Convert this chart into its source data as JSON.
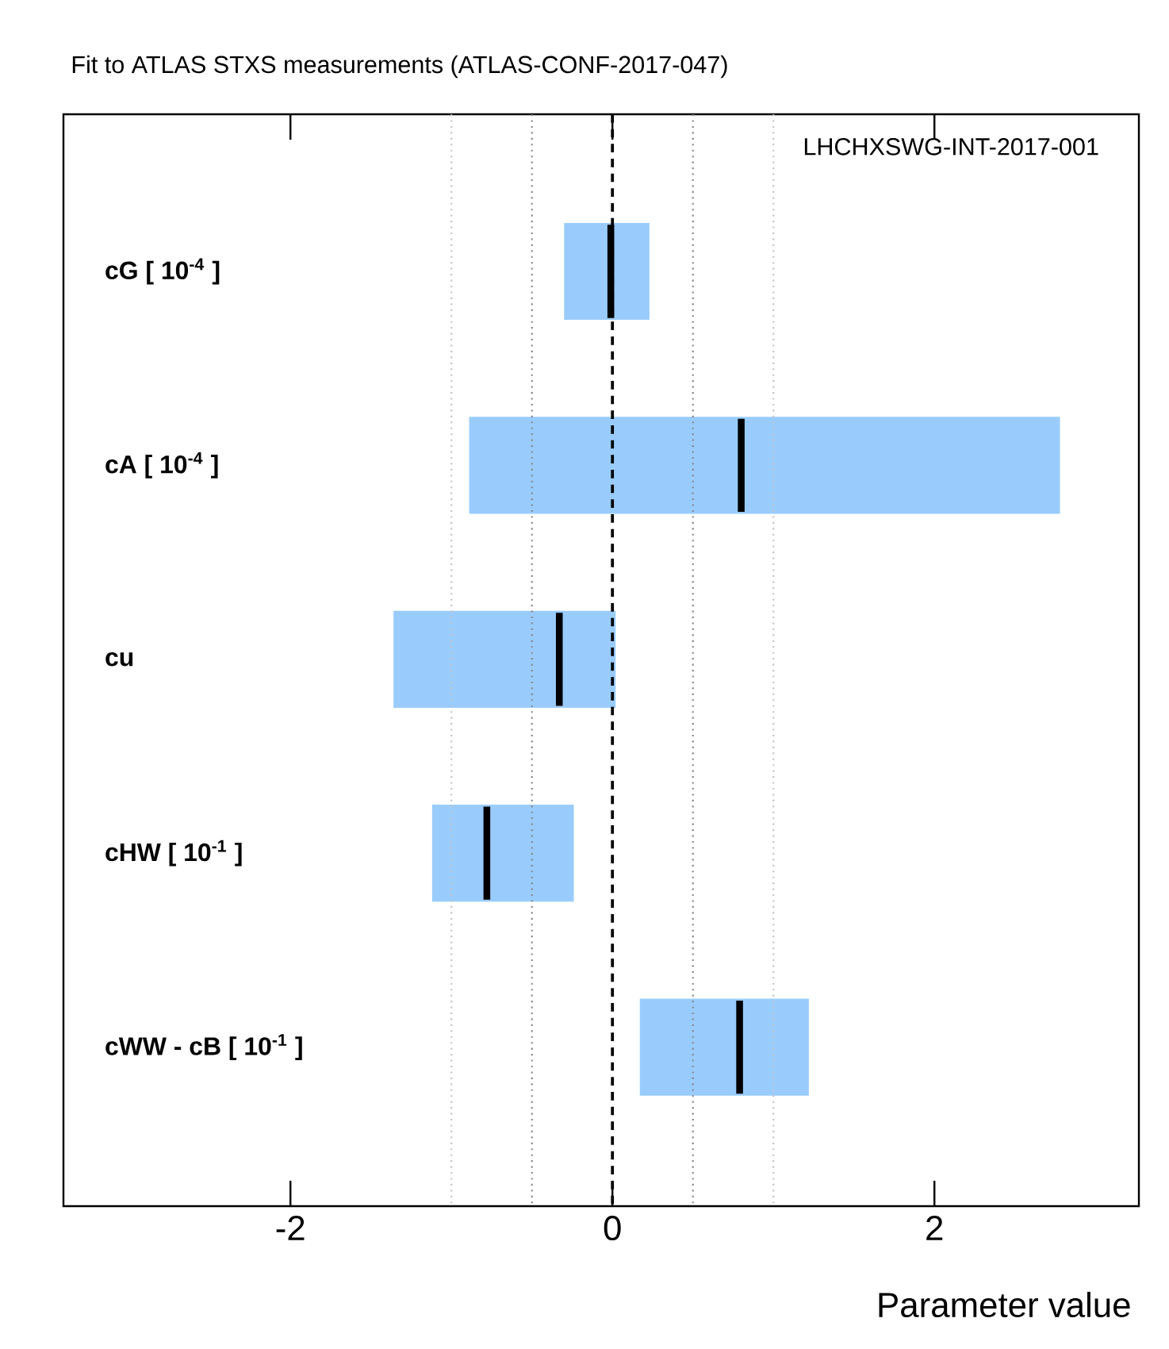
{
  "chart_data": {
    "type": "box",
    "orientation": "horizontal",
    "title": "Fit to ATLAS STXS measurements (ATLAS-CONF-2017-047)",
    "xlabel": "Parameter value",
    "annotations": [
      "LHCHXSWG-INT-2017-001"
    ],
    "categories": [
      "cG [ 10$^{-4}$ ]",
      "cA [ 10$^{-4}$ ]",
      "cu",
      "cHW [ 10$^{-1}$ ]",
      "cWW - cB [ 10$^{-1}$ ]"
    ],
    "series": [
      {
        "color": "#99ccfd",
        "boxes": [
          {
            "low": -0.3,
            "q1": -0.3,
            "median": -0.01,
            "q3": 0.23,
            "high": 0.23
          },
          {
            "low": -0.89,
            "q1": -0.89,
            "median": 0.8,
            "q3": 2.78,
            "high": 2.78
          },
          {
            "low": -1.36,
            "q1": -1.36,
            "median": -0.33,
            "q3": 0.02,
            "high": 0.02
          },
          {
            "low": -1.12,
            "q1": -1.12,
            "median": -0.78,
            "q3": -0.24,
            "high": -0.24
          },
          {
            "low": 0.17,
            "q1": 0.17,
            "median": 0.79,
            "q3": 1.22,
            "high": 1.22
          }
        ]
      }
    ],
    "xlim": [
      -3.41,
      3.27
    ],
    "xticks": [
      -2,
      0,
      2
    ],
    "ref_lines": [
      {
        "axis": "x",
        "value": 0,
        "color": "#000000",
        "line_style": "dashed"
      },
      {
        "axis": "x",
        "value": -0.5,
        "color": "#888888",
        "line_style": "dotted"
      },
      {
        "axis": "x",
        "value": 0.5,
        "color": "#888888",
        "line_style": "dotted"
      },
      {
        "axis": "x",
        "value": -1,
        "color": "#c4c4c4",
        "line_style": "dotted"
      },
      {
        "axis": "x",
        "value": 1,
        "color": "#c4c4c4",
        "line_style": "dotted"
      }
    ]
  }
}
